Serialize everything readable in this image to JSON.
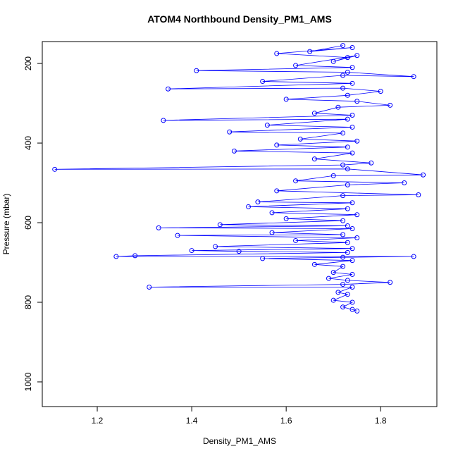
{
  "chart_data": {
    "type": "line",
    "title": "ATOM4 Northbound Density_PM1_AMS",
    "x_label": "Density_PM1_AMS",
    "y_label": "Pressure (mbar)",
    "color": "#0000ff",
    "points": true,
    "xlim": [
      1.0836,
      1.919
    ],
    "ylim": [
      1062,
      145
    ],
    "xticks": [
      1.2,
      1.4,
      1.6,
      1.8
    ],
    "yticks": [
      200,
      400,
      600,
      800,
      1000
    ],
    "x": [
      1.72,
      1.65,
      1.74,
      1.58,
      1.73,
      1.7,
      1.75,
      1.62,
      1.74,
      1.41,
      1.73,
      1.87,
      1.72,
      1.55,
      1.74,
      1.35,
      1.72,
      1.8,
      1.73,
      1.6,
      1.75,
      1.82,
      1.71,
      1.66,
      1.74,
      1.34,
      1.73,
      1.56,
      1.74,
      1.48,
      1.72,
      1.63,
      1.75,
      1.58,
      1.73,
      1.49,
      1.74,
      1.66,
      1.78,
      1.72,
      1.11,
      1.73,
      1.89,
      1.7,
      1.62,
      1.85,
      1.73,
      1.58,
      1.88,
      1.72,
      1.54,
      1.74,
      1.52,
      1.73,
      1.57,
      1.75,
      1.6,
      1.72,
      1.46,
      1.73,
      1.33,
      1.74,
      1.57,
      1.72,
      1.37,
      1.75,
      1.62,
      1.73,
      1.45,
      1.74,
      1.4,
      1.5,
      1.73,
      1.28,
      1.24,
      1.87,
      1.72,
      1.55,
      1.74,
      1.66,
      1.72,
      1.7,
      1.74,
      1.69,
      1.73,
      1.82,
      1.72,
      1.31,
      1.74,
      1.71,
      1.73,
      1.7,
      1.74,
      1.72,
      1.74,
      1.75
    ],
    "y": [
      155,
      170,
      160,
      175,
      185,
      195,
      180,
      205,
      210,
      218,
      222,
      233,
      230,
      245,
      250,
      264,
      262,
      270,
      280,
      290,
      295,
      305,
      310,
      325,
      330,
      343,
      340,
      355,
      360,
      372,
      375,
      390,
      395,
      405,
      410,
      420,
      425,
      440,
      450,
      455,
      466,
      465,
      480,
      482,
      495,
      500,
      505,
      520,
      530,
      532,
      548,
      550,
      560,
      565,
      575,
      580,
      590,
      595,
      605,
      608,
      613,
      615,
      625,
      630,
      632,
      638,
      645,
      650,
      660,
      665,
      670,
      672,
      675,
      683,
      685,
      685,
      687,
      690,
      695,
      705,
      710,
      725,
      730,
      740,
      745,
      750,
      755,
      762,
      762,
      775,
      780,
      795,
      800,
      812,
      818,
      822
    ]
  }
}
